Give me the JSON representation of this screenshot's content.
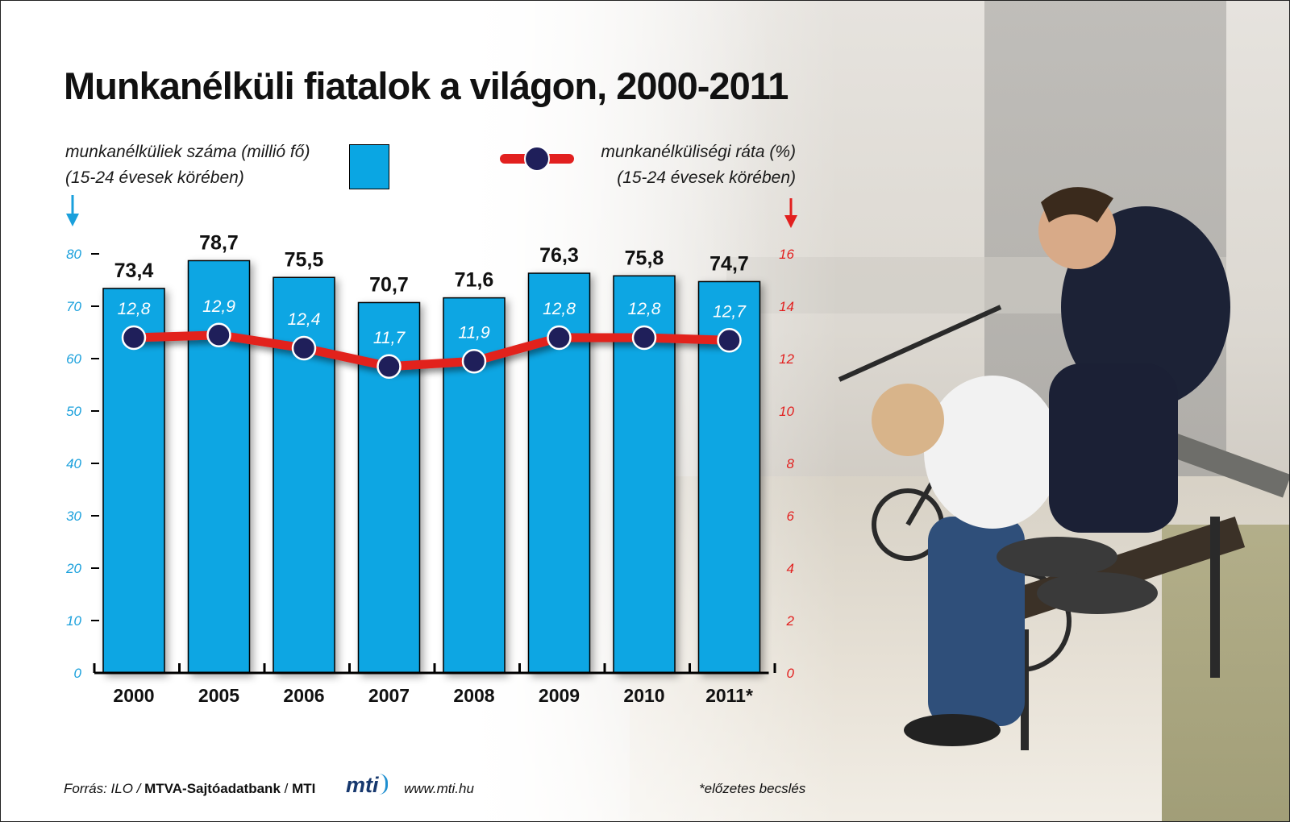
{
  "title": "Munkanélküli fiatalok a világon, 2000-2011",
  "legend": {
    "bars_line1": "munkanélküliek száma (millió fő)",
    "bars_line2": "(15-24 évesek körében)",
    "line_line1": "munkanélküliségi ráta (%)",
    "line_line2": "(15-24 évesek körében)"
  },
  "colors": {
    "bar": "#0aa6e3",
    "line": "#e2201f",
    "marker": "#1f1f5a",
    "left_axis": "#1aa0dc",
    "right_axis": "#e2201f"
  },
  "chart_data": {
    "type": "bar",
    "categories": [
      "2000",
      "2005",
      "2006",
      "2007",
      "2008",
      "2009",
      "2010",
      "2011*"
    ],
    "series": [
      {
        "name": "munkanélküliek száma (millió fő)",
        "axis": "left",
        "values": [
          73.4,
          78.7,
          75.5,
          70.7,
          71.6,
          76.3,
          75.8,
          74.7
        ],
        "labels": [
          "73,4",
          "78,7",
          "75,5",
          "70,7",
          "71,6",
          "76,3",
          "75,8",
          "74,7"
        ]
      },
      {
        "name": "munkanélküliségi ráta (%)",
        "type": "line",
        "axis": "right",
        "values": [
          12.8,
          12.9,
          12.4,
          11.7,
          11.9,
          12.8,
          12.8,
          12.7
        ],
        "labels": [
          "12,8",
          "12,9",
          "12,4",
          "11,7",
          "11,9",
          "12,8",
          "12,8",
          "12,7"
        ]
      }
    ],
    "ylim_left": [
      0,
      80
    ],
    "yticks_left": [
      0,
      10,
      20,
      30,
      40,
      50,
      60,
      70,
      80
    ],
    "ylim_right": [
      0,
      16
    ],
    "yticks_right": [
      0,
      2,
      4,
      6,
      8,
      10,
      12,
      14,
      16
    ],
    "grid": false,
    "legend_position": "top"
  },
  "footer": {
    "source_prefix": "Forrás: ILO / ",
    "source_bold": "MTVA-Sajtóadatbank",
    "source_sep": " / ",
    "source_mti": "MTI",
    "logo_text": "mti",
    "website": "www.mti.hu",
    "note": "*előzetes becslés"
  }
}
